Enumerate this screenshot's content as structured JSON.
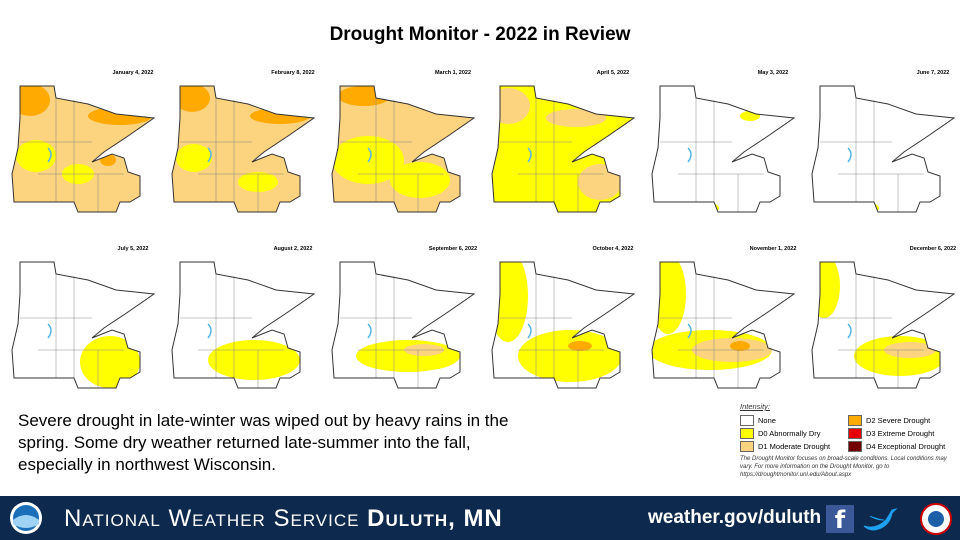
{
  "title": "Drought Monitor - 2022 in Review",
  "maps": [
    {
      "date": "January 4, 2022"
    },
    {
      "date": "February 8, 2022"
    },
    {
      "date": "March 1, 2022"
    },
    {
      "date": "April 5, 2022"
    },
    {
      "date": "May 3, 2022"
    },
    {
      "date": "June 7, 2022"
    },
    {
      "date": "July 5, 2022"
    },
    {
      "date": "August 2, 2022"
    },
    {
      "date": "September 6, 2022"
    },
    {
      "date": "October 4, 2022"
    },
    {
      "date": "November 1, 2022"
    },
    {
      "date": "December 6, 2022"
    }
  ],
  "description": "Severe drought in late-winter was wiped out by heavy rains in the spring. Some dry weather returned late-summer into the fall, especially in northwest Wisconsin.",
  "legend": {
    "title": "Intensity:",
    "items": [
      "None",
      "D0 Abnormally Dry",
      "D1 Moderate Drought",
      "D2 Severe Drought",
      "D3 Extreme Drought",
      "D4 Exceptional Drought"
    ],
    "note": "The Drought Monitor focuses on broad-scale conditions. Local conditions may vary. For more information on the Drought Monitor, go to https://droughtmonitor.unl.edu/About.aspx"
  },
  "footer": {
    "agency": "National Weather Service",
    "office": "Duluth, MN",
    "website": "weather.gov/duluth"
  }
}
